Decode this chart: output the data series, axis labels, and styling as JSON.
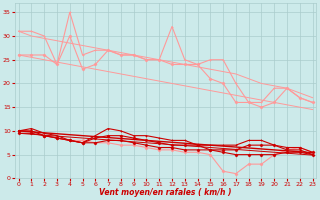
{
  "x": [
    0,
    1,
    2,
    3,
    4,
    5,
    6,
    7,
    8,
    9,
    10,
    11,
    12,
    13,
    14,
    15,
    16,
    17,
    18,
    19,
    20,
    21,
    22,
    23
  ],
  "rafales1": [
    31,
    31,
    30,
    24,
    35,
    26,
    27,
    27,
    26,
    26,
    25,
    25,
    32,
    25,
    24,
    25,
    25,
    20,
    16,
    16,
    19,
    19,
    17,
    16
  ],
  "rafales2": [
    26,
    26,
    26,
    24,
    30,
    23,
    24,
    27,
    26,
    26,
    25,
    25,
    24,
    24,
    24,
    21,
    20,
    16,
    16,
    15,
    16,
    19,
    17,
    16
  ],
  "trend_upper": [
    31,
    30,
    29.5,
    29,
    28.5,
    28,
    27.5,
    27,
    26.5,
    26,
    25.5,
    25,
    24.5,
    24,
    23.5,
    23,
    22.5,
    22,
    21,
    20,
    19.5,
    19,
    18,
    17
  ],
  "trend_lower": [
    26,
    25.5,
    25,
    24.5,
    24,
    23.5,
    23,
    22.5,
    22,
    21.5,
    21,
    20.5,
    20,
    19.5,
    19,
    18.5,
    18,
    17.5,
    17,
    16.5,
    16,
    15.5,
    15,
    14.5
  ],
  "pink_lower": [
    10,
    10,
    9,
    8.5,
    8,
    8,
    7.5,
    7.5,
    7,
    7,
    6.5,
    6,
    6,
    5.5,
    5.5,
    5,
    1.5,
    1,
    3,
    3,
    5,
    6,
    6.5,
    5.5
  ],
  "vent1": [
    10,
    10.5,
    9.5,
    9,
    8,
    7.5,
    9,
    10.5,
    10,
    9,
    9,
    8.5,
    8,
    8,
    7,
    7,
    7,
    7,
    8,
    8,
    7,
    6,
    6,
    5
  ],
  "vent2": [
    10,
    10,
    9,
    8.5,
    8,
    7.5,
    8.5,
    9,
    9,
    8.5,
    8,
    7.5,
    7,
    7,
    7,
    6,
    6,
    6,
    7,
    7,
    7,
    6.5,
    6.5,
    5.5
  ],
  "vent3": [
    9.5,
    9.5,
    9,
    8.5,
    8,
    7.5,
    7.5,
    8,
    8,
    7.5,
    7,
    6.5,
    6.5,
    6,
    6,
    6,
    5.5,
    5,
    5,
    5,
    5,
    5.5,
    5.5,
    5
  ],
  "trend_vent_upper": [
    10,
    9.8,
    9.6,
    9.4,
    9.2,
    9.0,
    8.8,
    8.6,
    8.4,
    8.2,
    8.0,
    7.8,
    7.6,
    7.4,
    7.2,
    7.0,
    6.8,
    6.6,
    6.4,
    6.2,
    6.0,
    5.8,
    5.6,
    5.4
  ],
  "trend_vent_lower": [
    9.5,
    9.3,
    9.1,
    8.9,
    8.7,
    8.5,
    8.3,
    8.1,
    7.9,
    7.7,
    7.5,
    7.3,
    7.1,
    6.9,
    6.7,
    6.5,
    6.3,
    6.1,
    5.9,
    5.7,
    5.5,
    5.3,
    5.1,
    4.9
  ],
  "background_color": "#cceaea",
  "grid_color": "#aacccc",
  "color_light": "#ff9999",
  "color_dark": "#cc0000",
  "xlabel": "Vent moyen/en rafales ( km/h )",
  "xlabel_color": "#cc0000",
  "tick_color": "#cc0000",
  "ylim": [
    0,
    37
  ],
  "yticks": [
    0,
    5,
    10,
    15,
    20,
    25,
    30,
    35
  ],
  "xticks": [
    0,
    1,
    2,
    3,
    4,
    5,
    6,
    7,
    8,
    9,
    10,
    11,
    12,
    13,
    14,
    15,
    16,
    17,
    18,
    19,
    20,
    21,
    22,
    23
  ]
}
